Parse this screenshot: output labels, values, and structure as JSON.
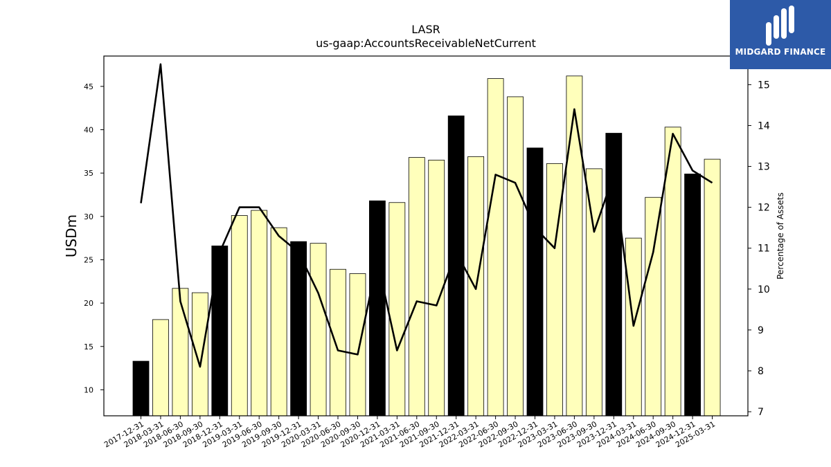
{
  "brand": {
    "name": "MIDGARD FINANCE",
    "bg_color": "#2d5aa8",
    "icon": "midgard-logo-icon"
  },
  "chart_data": {
    "type": "bar",
    "title": "LASR",
    "subtitle": "us-gaap:AccountsReceivableNetCurrent",
    "ylabel": "USDm",
    "y2label": "Percentage of Assets",
    "ylim": [
      7,
      48.5
    ],
    "y2lim": [
      6.9,
      15.7
    ],
    "yticks": [
      10,
      15,
      20,
      25,
      30,
      35,
      40,
      45
    ],
    "y2ticks": [
      7,
      8,
      9,
      10,
      11,
      12,
      13,
      14,
      15
    ],
    "grid": false,
    "categories": [
      "2017-12-31",
      "2018-03-31",
      "2018-06-30",
      "2018-09-30",
      "2018-12-31",
      "2019-03-31",
      "2019-06-30",
      "2019-09-30",
      "2019-12-31",
      "2020-03-31",
      "2020-06-30",
      "2020-09-30",
      "2020-12-31",
      "2021-03-31",
      "2021-06-30",
      "2021-09-30",
      "2021-12-31",
      "2022-03-31",
      "2022-06-30",
      "2022-09-30",
      "2022-12-31",
      "2023-03-31",
      "2023-06-30",
      "2023-09-30",
      "2023-12-31",
      "2024-03-31",
      "2024-06-30",
      "2024-09-30",
      "2024-12-31",
      "2025-03-31"
    ],
    "series": [
      {
        "values": [
          13.3,
          18.1,
          21.7,
          21.2,
          26.6,
          30.1,
          30.7,
          28.7,
          27.1,
          26.9,
          23.9,
          23.4,
          31.8,
          31.6,
          36.8,
          36.5,
          41.6,
          36.9,
          45.9,
          43.8,
          37.9,
          36.1,
          46.2,
          35.5,
          39.6,
          27.5,
          32.2,
          40.3,
          34.9,
          36.6
        ],
        "highlight": [
          true,
          false,
          false,
          false,
          true,
          false,
          false,
          false,
          true,
          false,
          false,
          false,
          true,
          false,
          false,
          false,
          true,
          false,
          false,
          false,
          true,
          false,
          false,
          false,
          true,
          false,
          false,
          false,
          true,
          false
        ]
      },
      {
        "values": [
          12.1,
          15.5,
          9.7,
          8.1,
          10.9,
          12.0,
          12.0,
          11.3,
          10.9,
          9.9,
          8.5,
          8.4,
          10.7,
          8.5,
          9.7,
          9.6,
          10.9,
          10.0,
          12.8,
          12.6,
          11.5,
          11.0,
          14.4,
          11.4,
          12.8,
          9.1,
          10.9,
          13.8,
          12.9,
          12.6
        ],
        "axis": "right"
      }
    ],
    "colors": {
      "bar_highlight": "#000000",
      "bar_default": "#ffffbb",
      "bar_edge": "#000000",
      "line": "#000000"
    }
  }
}
